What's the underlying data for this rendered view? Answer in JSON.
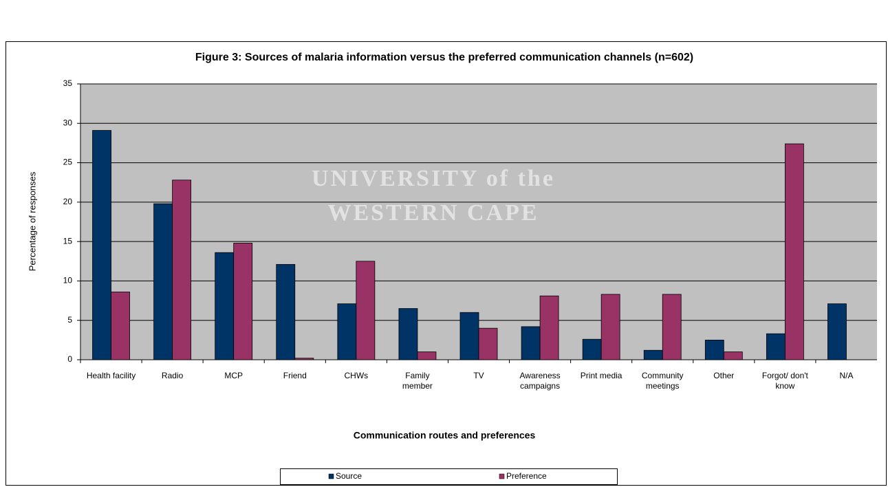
{
  "chart_data": {
    "type": "bar",
    "title": "Figure 3: Sources of malaria information versus the preferred communication channels (n=602)",
    "watermark": [
      "UNIVERSITY of the",
      "WESTERN CAPE"
    ],
    "xlabel": "Communication routes and preferences",
    "ylabel": "Percentage of responses",
    "categories": [
      "Health facility",
      "Radio",
      "MCP",
      "Friend",
      "CHWs",
      "Family member",
      "TV",
      "Awareness campaigns",
      "Print media",
      "Community meetings",
      "Other",
      "Forgot/ don't know",
      "N/A"
    ],
    "series": [
      {
        "name": "Source",
        "color": "#003366",
        "values": [
          29.1,
          19.8,
          13.6,
          12.1,
          7.1,
          6.5,
          6.0,
          4.2,
          2.6,
          1.2,
          2.5,
          3.3,
          7.1
        ]
      },
      {
        "name": "Preference",
        "color": "#993366",
        "values": [
          8.6,
          22.8,
          14.8,
          0.2,
          12.5,
          1.0,
          4.0,
          8.1,
          8.3,
          8.3,
          1.0,
          27.4,
          null
        ]
      }
    ],
    "ylim": [
      0,
      35
    ],
    "yticks": [
      0,
      5,
      10,
      15,
      20,
      25,
      30,
      35
    ],
    "grid": true,
    "legend": "bottom"
  }
}
